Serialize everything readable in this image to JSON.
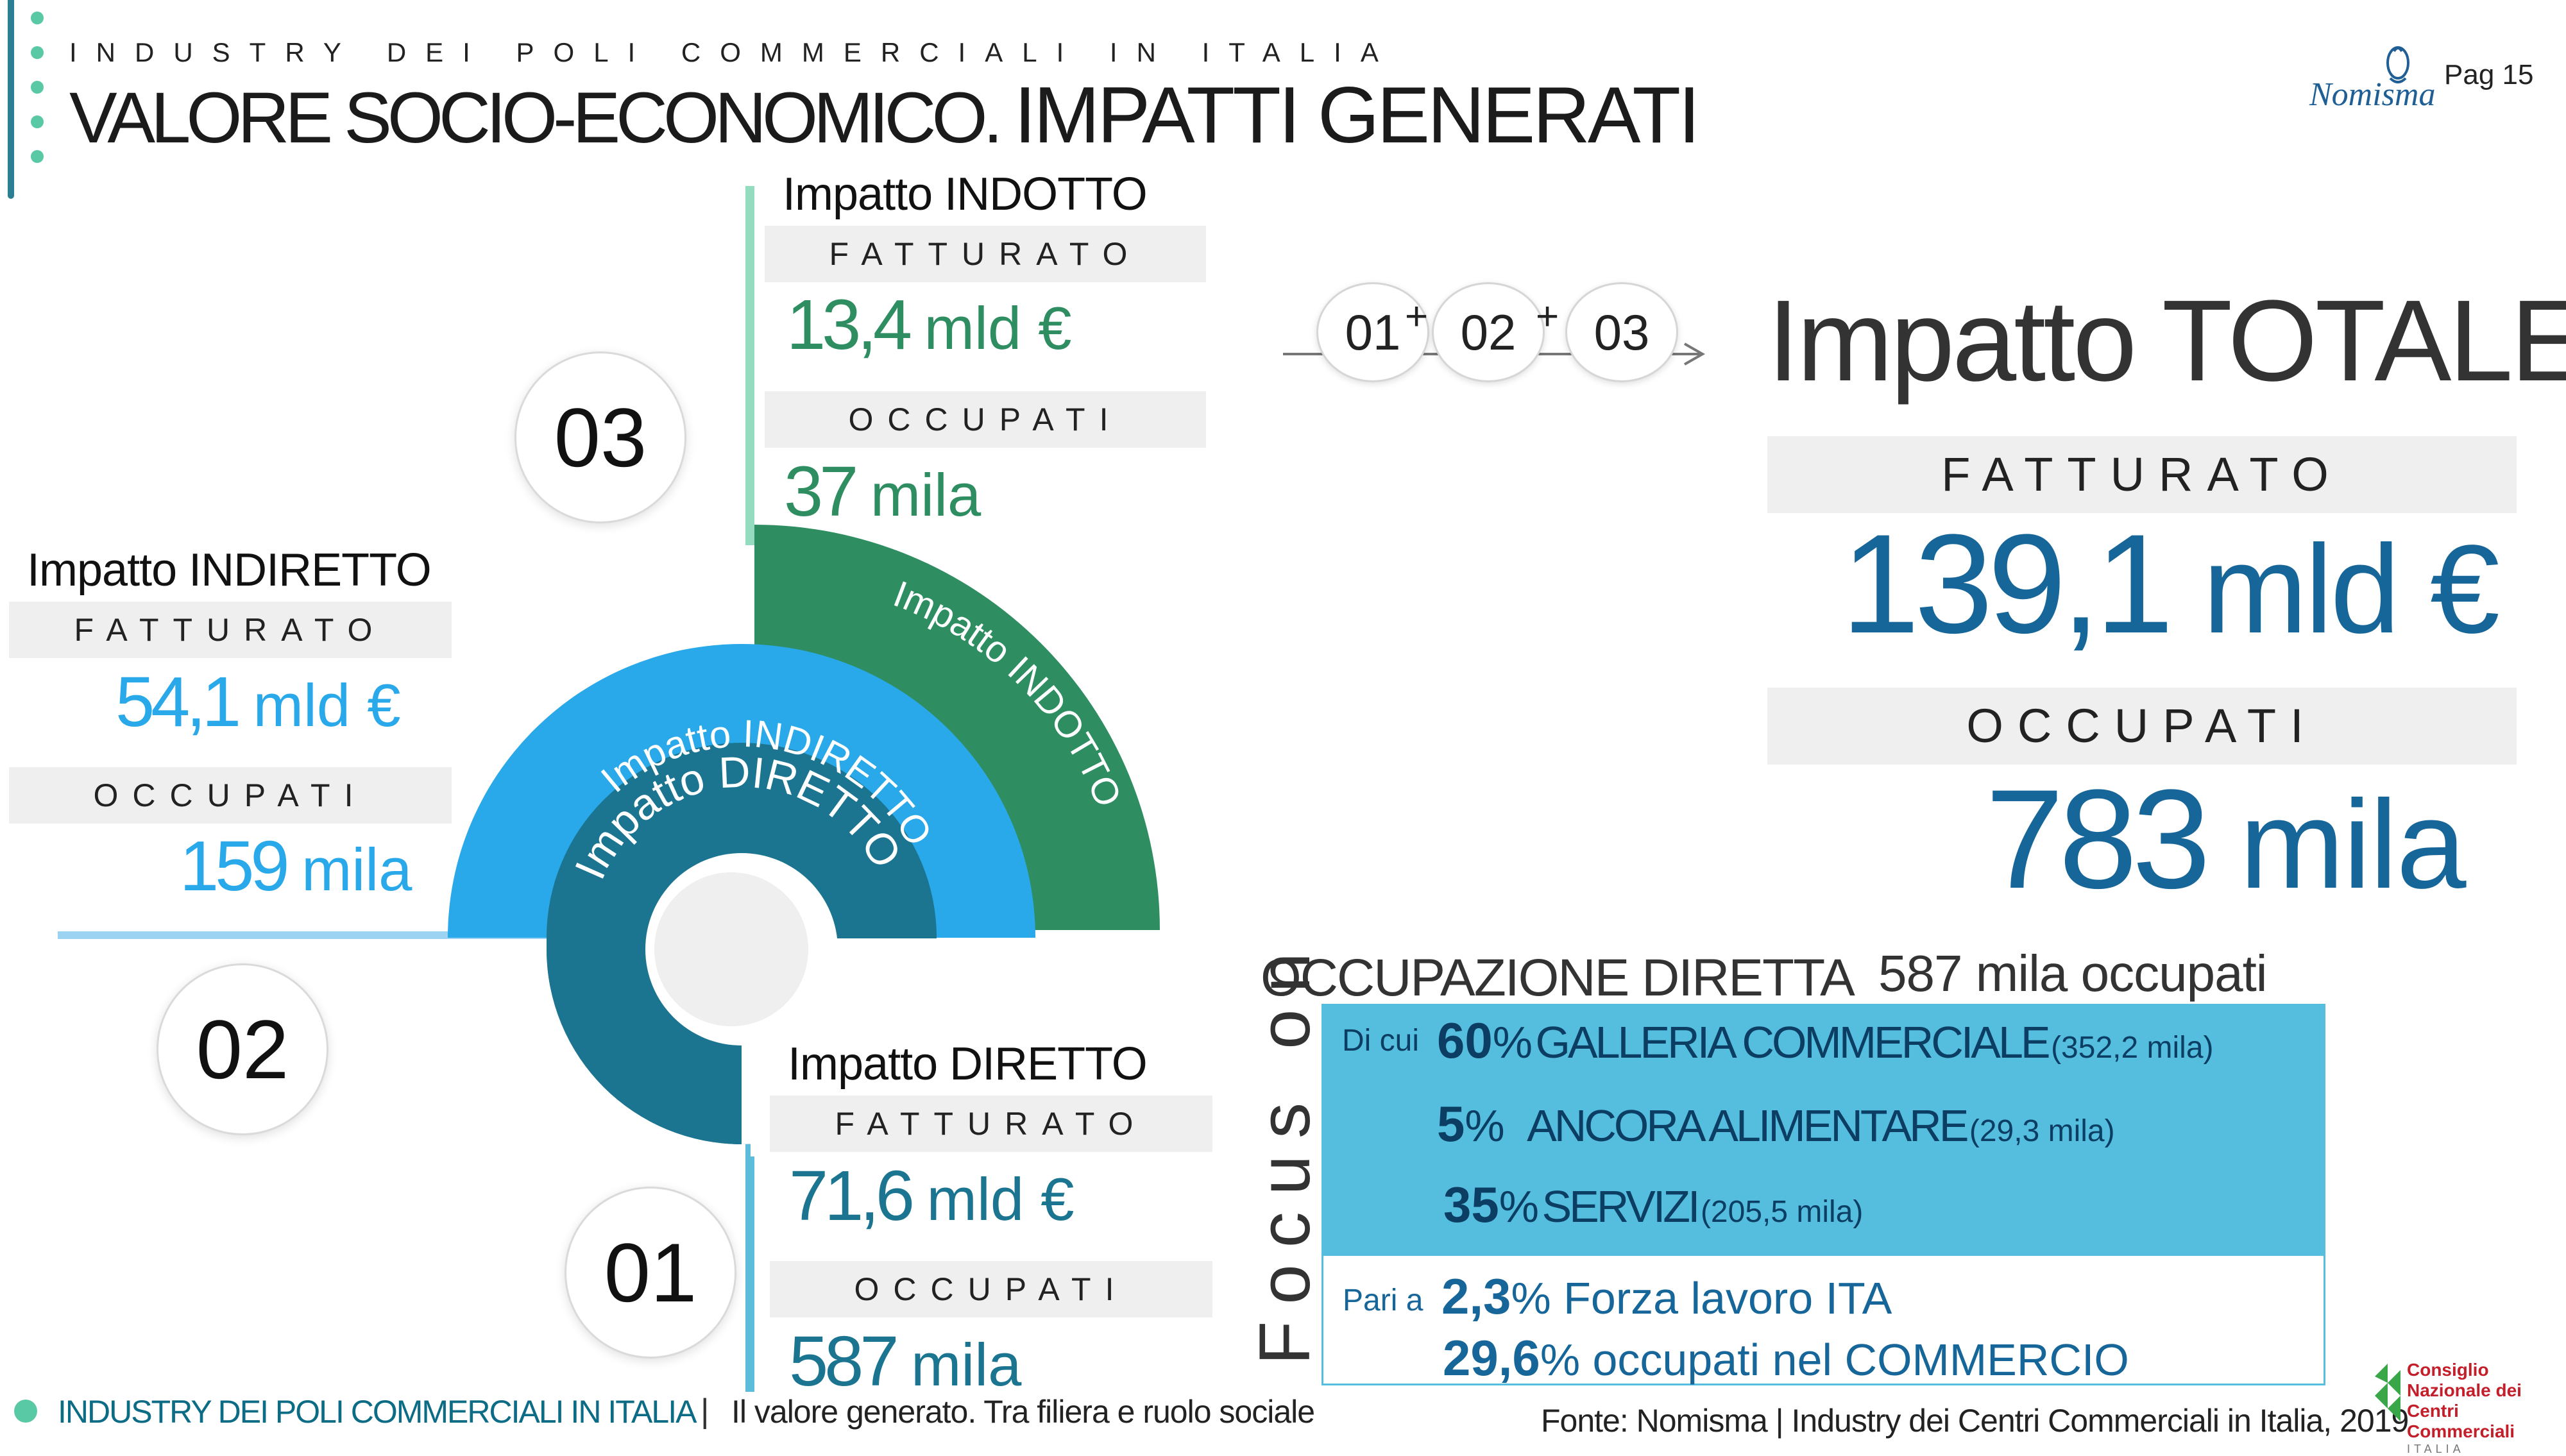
{
  "header": {
    "kicker": "INDUSTRY DEI POLI COMMERCIALI IN ITALIA",
    "title_part1": "VALORE SOCIO-ECONOMICO.",
    "title_part2": "IMPATTI GENERATI",
    "page_label": "Pag 15",
    "logo_text": "Nomisma"
  },
  "blocks": {
    "indotto": {
      "title": "Impatto INDOTTO",
      "fatturato_label": "FATTURATO",
      "fatturato_value": "13,4",
      "fatturato_unit": "mld €",
      "occupati_label": "OCCUPATI",
      "occupati_value": "37",
      "occupati_unit": "mila"
    },
    "indiretto": {
      "title": "Impatto INDIRETTO",
      "fatturato_label": "FATTURATO",
      "fatturato_value": "54,1",
      "fatturato_unit": "mld €",
      "occupati_label": "OCCUPATI",
      "occupati_value": "159",
      "occupati_unit": "mila"
    },
    "diretto": {
      "title": "Impatto DIRETTO",
      "fatturato_label": "FATTURATO",
      "fatturato_value": "71,6",
      "fatturato_unit": "mld €",
      "occupati_label": "OCCUPATI",
      "occupati_value": "587",
      "occupati_unit": "mila"
    }
  },
  "markers": {
    "m01": "01",
    "m02": "02",
    "m03": "03"
  },
  "arcs": {
    "diretto": "Impatto DIRETTO",
    "indiretto": "Impatto INDIRETTO",
    "indotto": "Impatto INDOTTO"
  },
  "colors": {
    "diretto": "#1c7590",
    "indiretto": "#29a8ea",
    "indotto": "#2e8e61",
    "total_blue": "#176699"
  },
  "formula": {
    "a": "01",
    "b": "02",
    "c": "03",
    "plus": "+"
  },
  "totale": {
    "title": "Impatto TOTALE",
    "fatturato_label": "FATTURATO",
    "fatturato_value": "139,1",
    "fatturato_unit": "mld €",
    "occupati_label": "OCCUPATI",
    "occupati_value": "783",
    "occupati_unit": "mila"
  },
  "occupazione": {
    "title": "OCCUPAZIONE DIRETTA",
    "subtitle": "587 mila occupati",
    "focus_label": "Focus on",
    "di_cui": "Di cui",
    "rows": [
      {
        "pct": "60",
        "sign": "%",
        "label": "GALLERIA COMMERCIALE",
        "detail": "(352,2 mila)"
      },
      {
        "pct": "5",
        "sign": "%",
        "label": "ANCORA ALIMENTARE",
        "detail": "(29,3 mila)"
      },
      {
        "pct": "35",
        "sign": "%",
        "label": "SERVIZI",
        "detail": "(205,5 mila)"
      }
    ],
    "pari_a": "Pari a",
    "pari_rows": [
      {
        "pct": "2,3",
        "text": "% Forza lavoro ITA"
      },
      {
        "pct": "29,6",
        "text": "% occupati nel COMMERCIO"
      }
    ]
  },
  "footer": {
    "left": "INDUSTRY DEI POLI COMMERCIALI IN ITALIA",
    "sep": "|",
    "middle": "Il valore generato. Tra filiera e ruolo sociale",
    "source": "Fonte: Nomisma | Industry dei Centri Commerciali in Italia, 2019",
    "cncc_line1": "Consiglio",
    "cncc_line2": "Nazionale dei",
    "cncc_line3": "Centri Commerciali",
    "cncc_line4": "ITALIA"
  }
}
